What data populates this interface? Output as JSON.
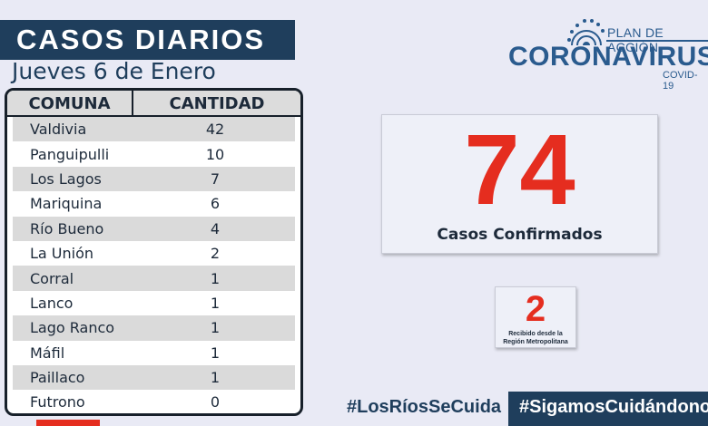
{
  "header": {
    "title": "CASOS DIARIOS",
    "date": "Jueves 6 de Enero"
  },
  "logo": {
    "plan": "PLAN DE ACCIÓN",
    "title": "CORONAVIRUS",
    "covid": "COVID-19"
  },
  "table": {
    "col_comuna": "COMUNA",
    "col_cantidad": "CANTIDAD",
    "rows": [
      {
        "comuna": "Valdivia",
        "cantidad": "42"
      },
      {
        "comuna": "Panguipulli",
        "cantidad": "10"
      },
      {
        "comuna": "Los Lagos",
        "cantidad": "7"
      },
      {
        "comuna": "Mariquina",
        "cantidad": "6"
      },
      {
        "comuna": "Río Bueno",
        "cantidad": "4"
      },
      {
        "comuna": "La Unión",
        "cantidad": "2"
      },
      {
        "comuna": "Corral",
        "cantidad": "1"
      },
      {
        "comuna": "Lanco",
        "cantidad": "1"
      },
      {
        "comuna": "Lago Ranco",
        "cantidad": "1"
      },
      {
        "comuna": "Máfil",
        "cantidad": "1"
      },
      {
        "comuna": "Paillaco",
        "cantidad": "1"
      },
      {
        "comuna": "Futrono",
        "cantidad": "0"
      }
    ]
  },
  "summary": {
    "total": "74",
    "total_label": "Casos Confirmados",
    "metropolitana": "2",
    "metropolitana_label_1": "Recibido desde la",
    "metropolitana_label_2": "Región Metropolitana"
  },
  "footer": {
    "hashtag1": "#LosRíosSeCuida",
    "hashtag2": "#SigamosCuidándonos"
  },
  "colors": {
    "navy": "#1f3e5c",
    "red": "#e52d1f",
    "logo_blue": "#2a5b8e",
    "background": "#e9eaf5"
  }
}
